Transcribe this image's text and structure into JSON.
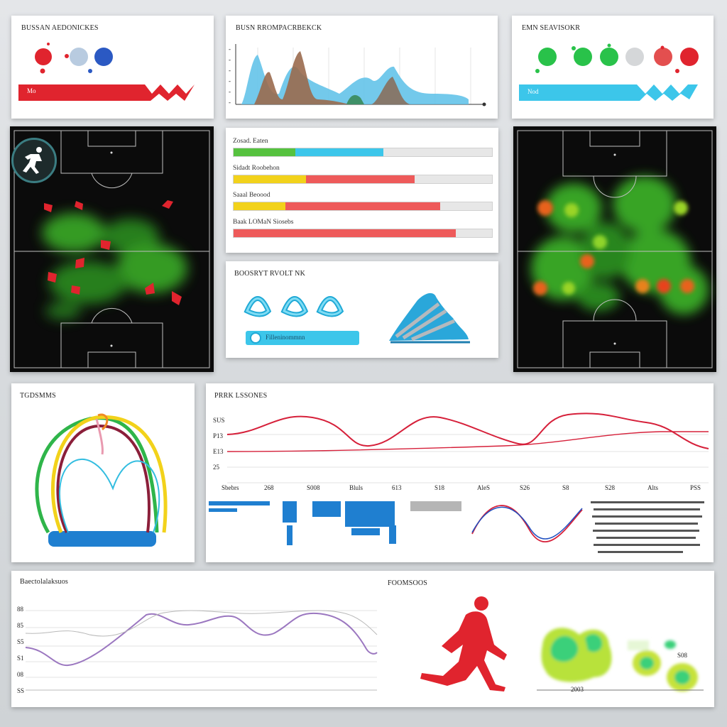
{
  "colors": {
    "red": "#e0242e",
    "green": "#29c24a",
    "cyan": "#3cc6ea",
    "blue": "#2b59c3",
    "yellow": "#f2d21b",
    "line_red": "#d6203a",
    "purple": "#9b77c0",
    "pitch_bg": "#0b0b0b",
    "heat_green": "#3fbf2c"
  },
  "panel_top_left": {
    "title": "BUSSAN AEDONICKES",
    "banner_text": "Mo"
  },
  "panel_top_mid": {
    "title": "BUSN RROMPACRBEKCK",
    "y_ticks": [
      "-",
      "-",
      "-",
      "-",
      "-",
      "-"
    ]
  },
  "panel_top_right": {
    "title": "EMN SEAVISOKR",
    "banner_text": "Nod"
  },
  "pitch_left": {
    "icon": "runner-icon"
  },
  "bars_panel": {
    "rows": [
      {
        "label": "Zosad. Eaten",
        "segments": [
          {
            "color": "#56c23f",
            "pct": 24
          },
          {
            "color": "#3cc6ea",
            "pct": 34
          }
        ]
      },
      {
        "label": "Sidadt Roobehon",
        "segments": [
          {
            "color": "#f2d21b",
            "pct": 28
          },
          {
            "color": "#ee5a5a",
            "pct": 42
          }
        ]
      },
      {
        "label": "Saaal Beoood",
        "segments": [
          {
            "color": "#f2d21b",
            "pct": 20
          },
          {
            "color": "#ee5a5a",
            "pct": 60
          }
        ]
      },
      {
        "label": "Baak LOMaN Siosebs",
        "segments": [
          {
            "color": "#ee5a5a",
            "pct": 86
          }
        ]
      }
    ]
  },
  "chain_panel": {
    "title": "BOOSRYT RVOLT NK",
    "banner_text": "Filleninommnn"
  },
  "arch_panel": {
    "title": "TGDSMMS"
  },
  "line_panel": {
    "title": "PRRK LSSONES",
    "y_ticks": [
      "SUS",
      "P13",
      "E13",
      "25"
    ],
    "x_ticks": [
      "Sbebrs",
      "268",
      "S008",
      "Bluls",
      "613",
      "S18",
      "AleS",
      "S26",
      "S8",
      "S28",
      "Alts",
      "PSS"
    ]
  },
  "bottom_left": {
    "title": "Baectolalaksuos",
    "y_ticks": [
      "88",
      "85",
      "S5",
      "S1",
      "08",
      "SS"
    ]
  },
  "bottom_right": {
    "title": "FOOMSOOS",
    "heat_label_1": "2003",
    "heat_label_2": "S08",
    "icon": "runner-icon"
  }
}
